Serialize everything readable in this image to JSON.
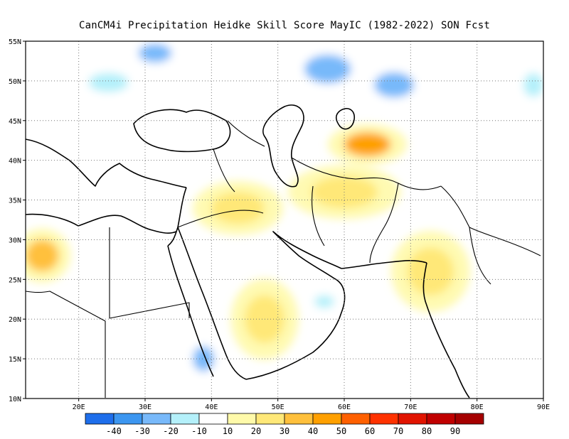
{
  "title": "CanCM4i  Precipitation Heidke Skill Score MayIC (1982-2022) SON Fcst",
  "map": {
    "lon_range": [
      12,
      90
    ],
    "lat_range": [
      10,
      55
    ],
    "lon_ticks": [
      {
        "value": 20,
        "label": "20E"
      },
      {
        "value": 30,
        "label": "30E"
      },
      {
        "value": 40,
        "label": "40E"
      },
      {
        "value": 50,
        "label": "50E"
      },
      {
        "value": 60,
        "label": "60E"
      },
      {
        "value": 70,
        "label": "70E"
      },
      {
        "value": 80,
        "label": "80E"
      },
      {
        "value": 90,
        "label": "90E"
      }
    ],
    "lat_ticks": [
      {
        "value": 55,
        "label": "55N"
      },
      {
        "value": 50,
        "label": "50N"
      },
      {
        "value": 45,
        "label": "45N"
      },
      {
        "value": 40,
        "label": "40N"
      },
      {
        "value": 35,
        "label": "35N"
      },
      {
        "value": 30,
        "label": "30N"
      },
      {
        "value": 25,
        "label": "25N"
      },
      {
        "value": 20,
        "label": "20N"
      },
      {
        "value": 15,
        "label": "15N"
      },
      {
        "value": 10,
        "label": "10N"
      }
    ],
    "grid": true,
    "features": [
      {
        "name": "blue-anomaly-north-caspian",
        "lon": 57.5,
        "lat": 51.5,
        "level": -30,
        "rx": 3.5,
        "ry": 1.8
      },
      {
        "name": "blue-anomaly-north-black-sea",
        "lon": 31.5,
        "lat": 53.5,
        "level": -30,
        "rx": 2.5,
        "ry": 1.2
      },
      {
        "name": "blue-anomaly-ukraine",
        "lon": 24.5,
        "lat": 49.8,
        "level": -20,
        "rx": 3,
        "ry": 1.2
      },
      {
        "name": "blue-anomaly-kazakh",
        "lon": 67.5,
        "lat": 49.5,
        "level": -30,
        "rx": 3,
        "ry": 1.6
      },
      {
        "name": "blue-anomaly-red-sea-south",
        "lon": 38.8,
        "lat": 15,
        "level": -30,
        "rx": 1.6,
        "ry": 1.6
      },
      {
        "name": "blue-anomaly-oman",
        "lon": 57,
        "lat": 22.2,
        "level": -20,
        "rx": 1.5,
        "ry": 0.8
      },
      {
        "name": "blue-anomaly-far-east",
        "lon": 88.5,
        "lat": 49.5,
        "level": -20,
        "rx": 1.5,
        "ry": 1.5
      },
      {
        "name": "orange-anomaly-aral",
        "lon": 63.5,
        "lat": 42,
        "level": 40,
        "rx": 3.5,
        "ry": 1.5
      },
      {
        "name": "orange-anomaly-iran",
        "lon": 60,
        "lat": 36,
        "level": 20,
        "rx": 5,
        "ry": 2
      },
      {
        "name": "orange-anomaly-libya",
        "lon": 14.5,
        "lat": 28,
        "level": 30,
        "rx": 2.5,
        "ry": 2
      },
      {
        "name": "orange-anomaly-arabia",
        "lon": 48,
        "lat": 20,
        "level": 20,
        "rx": 3,
        "ry": 3
      },
      {
        "name": "orange-anomaly-iraq",
        "lon": 44,
        "lat": 34,
        "level": 20,
        "rx": 4,
        "ry": 2
      },
      {
        "name": "orange-anomaly-india",
        "lon": 73,
        "lat": 26,
        "level": 20,
        "rx": 3.5,
        "ry": 3
      }
    ]
  },
  "colorbar": {
    "levels": [
      "-40",
      "-30",
      "-20",
      "-10",
      "10",
      "20",
      "30",
      "40",
      "50",
      "60",
      "70",
      "80",
      "90"
    ],
    "colors": [
      "#1e6eeb",
      "#3c96f0",
      "#78b9fa",
      "#b4f0fa",
      "#ffffff",
      "#fffaaa",
      "#ffe878",
      "#ffc03c",
      "#ffa000",
      "#ff6000",
      "#ff3200",
      "#e11400",
      "#c00000",
      "#a50000"
    ]
  }
}
